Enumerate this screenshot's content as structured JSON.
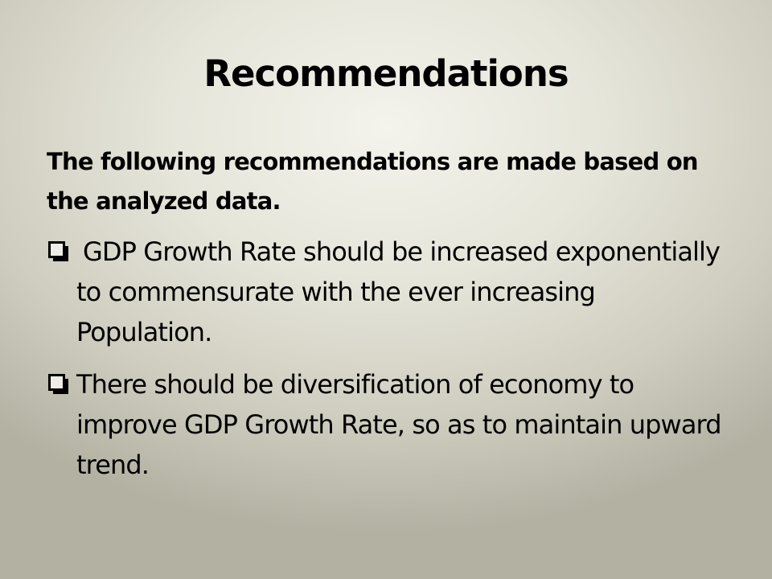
{
  "slide": {
    "title": "Recommendations",
    "intro": "The following recommendations are made based on the analyzed data.",
    "bullets": [
      {
        "icon": "checkbox-icon",
        "text": "GDP Growth Rate should be increased exponentially to commensurate with the ever increasing Population."
      },
      {
        "icon": "checkbox-icon",
        "text": "There should be diversification of economy to improve GDP Growth Rate, so as to maintain upward trend."
      }
    ]
  },
  "colors": {
    "text": "#000000",
    "background_center": "#f4f3ec",
    "background_edge": "#b3b1a2"
  }
}
